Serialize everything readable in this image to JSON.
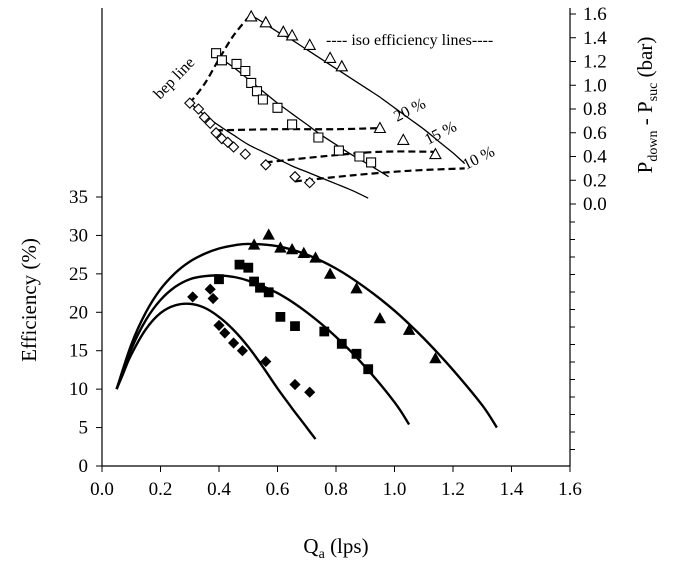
{
  "chart_data": {
    "type": "scatter",
    "xlabel": "Q",
    "xlabel_sub": "a",
    "xlabel_units": " (lps)",
    "ylabel": "Efficiency (%)",
    "y2label_prefix": "P",
    "y2label_sub1": "down",
    "y2label_mid": " - P",
    "y2label_sub2": "suc",
    "y2label_suffix": " (bar)",
    "xlim": [
      0,
      1.6
    ],
    "ylim": [
      0,
      35
    ],
    "y2lim": [
      0,
      1.6
    ],
    "x_ticks": [
      "0.0",
      "0.2",
      "0.4",
      "0.6",
      "0.8",
      "1.0",
      "1.2",
      "1.4",
      "1.6"
    ],
    "y_ticks": [
      "0",
      "5",
      "10",
      "15",
      "20",
      "25",
      "30",
      "35"
    ],
    "y2_ticks": [
      "0.0",
      "0.2",
      "0.4",
      "0.6",
      "0.8",
      "1.0",
      "1.2",
      "1.4",
      "1.6"
    ],
    "annotations": {
      "legend_note": "---- iso efficiency lines----",
      "bep_line": "bep line",
      "iso_20": "20 %",
      "iso_15": "15 %",
      "iso_10": "10 %"
    },
    "series": [
      {
        "marker": "filled-diamond",
        "axis": "efficiency",
        "x": [
          0.31,
          0.37,
          0.38,
          0.4,
          0.42,
          0.45,
          0.48,
          0.56,
          0.66,
          0.71
        ],
        "y": [
          22.0,
          23.0,
          21.8,
          18.3,
          17.3,
          16.0,
          15.0,
          13.6,
          10.6,
          9.6
        ]
      },
      {
        "marker": "filled-square",
        "axis": "efficiency",
        "x": [
          0.4,
          0.47,
          0.5,
          0.52,
          0.54,
          0.57,
          0.61,
          0.66,
          0.76,
          0.82,
          0.87,
          0.91
        ],
        "y": [
          24.3,
          26.2,
          25.8,
          24.0,
          23.2,
          22.6,
          19.4,
          18.2,
          17.5,
          15.9,
          14.6,
          12.6
        ]
      },
      {
        "marker": "filled-triangle",
        "axis": "efficiency",
        "x": [
          0.52,
          0.57,
          0.61,
          0.65,
          0.69,
          0.73,
          0.78,
          0.87,
          0.95,
          1.05,
          1.14
        ],
        "y": [
          28.8,
          30.1,
          28.4,
          28.2,
          27.7,
          27.1,
          25.0,
          23.1,
          19.2,
          17.7,
          14.0
        ]
      },
      {
        "marker": "open-diamond",
        "axis": "pressure",
        "x": [
          0.3,
          0.33,
          0.35,
          0.37,
          0.39,
          0.41,
          0.43,
          0.45,
          0.49,
          0.56,
          0.66,
          0.71
        ],
        "y": [
          0.85,
          0.8,
          0.73,
          0.68,
          0.6,
          0.55,
          0.52,
          0.48,
          0.42,
          0.33,
          0.23,
          0.18
        ]
      },
      {
        "marker": "open-square",
        "axis": "pressure",
        "x": [
          0.39,
          0.41,
          0.46,
          0.49,
          0.51,
          0.53,
          0.55,
          0.6,
          0.65,
          0.74,
          0.81,
          0.88,
          0.92
        ],
        "y": [
          1.27,
          1.21,
          1.18,
          1.12,
          1.02,
          0.95,
          0.88,
          0.81,
          0.67,
          0.56,
          0.45,
          0.4,
          0.35
        ]
      },
      {
        "marker": "open-triangle",
        "axis": "pressure",
        "x": [
          0.51,
          0.56,
          0.62,
          0.65,
          0.71,
          0.78,
          0.82,
          0.95,
          1.03,
          1.14
        ],
        "y": [
          1.58,
          1.53,
          1.45,
          1.42,
          1.34,
          1.23,
          1.16,
          0.64,
          0.54,
          0.42
        ]
      }
    ],
    "fit_curves": [
      {
        "axis": "efficiency",
        "x": [
          0.05,
          0.07,
          0.1,
          0.15,
          0.2,
          0.25,
          0.3,
          0.35,
          0.4,
          0.45,
          0.5,
          0.55,
          0.6,
          0.65,
          0.7,
          0.73
        ],
        "y": [
          10.0,
          11.8,
          14.5,
          17.8,
          19.9,
          20.9,
          21.1,
          20.6,
          19.4,
          17.7,
          15.5,
          12.9,
          10.1,
          7.5,
          5.0,
          3.5
        ]
      },
      {
        "axis": "efficiency",
        "x": [
          0.05,
          0.1,
          0.15,
          0.2,
          0.25,
          0.3,
          0.35,
          0.4,
          0.45,
          0.5,
          0.6,
          0.7,
          0.8,
          0.9,
          1.0,
          1.05
        ],
        "y": [
          10.0,
          15.2,
          19.0,
          21.6,
          23.3,
          24.3,
          24.7,
          24.8,
          24.6,
          24.1,
          22.5,
          20.0,
          16.8,
          12.9,
          8.3,
          5.4
        ]
      },
      {
        "axis": "efficiency",
        "x": [
          0.05,
          0.1,
          0.15,
          0.2,
          0.25,
          0.3,
          0.35,
          0.4,
          0.45,
          0.5,
          0.6,
          0.7,
          0.8,
          0.9,
          1.0,
          1.1,
          1.2,
          1.3,
          1.35
        ],
        "y": [
          10.0,
          15.8,
          20.0,
          23.0,
          25.1,
          26.6,
          27.6,
          28.3,
          28.7,
          28.9,
          28.6,
          27.5,
          25.7,
          23.2,
          20.2,
          16.6,
          12.5,
          7.9,
          5.0
        ]
      },
      {
        "axis": "pressure",
        "x": [
          0.3,
          0.35,
          0.4,
          0.45,
          0.5,
          0.55,
          0.6,
          0.65,
          0.7,
          0.75,
          0.8,
          0.85,
          0.91
        ],
        "y": [
          0.85,
          0.75,
          0.66,
          0.58,
          0.5,
          0.44,
          0.38,
          0.32,
          0.27,
          0.22,
          0.17,
          0.12,
          0.05
        ]
      },
      {
        "axis": "pressure",
        "x": [
          0.38,
          0.45,
          0.5,
          0.55,
          0.6,
          0.65,
          0.7,
          0.75,
          0.8,
          0.85,
          0.92,
          0.98
        ],
        "y": [
          1.27,
          1.15,
          1.05,
          0.95,
          0.85,
          0.76,
          0.67,
          0.58,
          0.5,
          0.42,
          0.32,
          0.23
        ]
      },
      {
        "axis": "pressure",
        "x": [
          0.51,
          0.55,
          0.6,
          0.65,
          0.7,
          0.75,
          0.8,
          0.85,
          0.9,
          0.95,
          1.0,
          1.05,
          1.1,
          1.15,
          1.2,
          1.24
        ],
        "y": [
          1.59,
          1.53,
          1.45,
          1.38,
          1.3,
          1.22,
          1.14,
          1.06,
          0.98,
          0.9,
          0.81,
          0.72,
          0.63,
          0.53,
          0.43,
          0.34
        ]
      }
    ],
    "bep_line": {
      "axis": "pressure",
      "x": [
        0.3,
        0.35,
        0.4,
        0.45,
        0.51
      ],
      "y": [
        0.85,
        1.01,
        1.22,
        1.42,
        1.6
      ]
    },
    "iso_lines": [
      {
        "label": "20 %",
        "axis": "pressure",
        "x": [
          0.39,
          0.6,
          0.8,
          0.96
        ],
        "y": [
          0.62,
          0.63,
          0.63,
          0.64
        ]
      },
      {
        "label": "15 %",
        "axis": "pressure",
        "x": [
          0.56,
          0.75,
          0.95,
          1.14
        ],
        "y": [
          0.35,
          0.4,
          0.44,
          0.44
        ]
      },
      {
        "label": "10 %",
        "axis": "pressure",
        "x": [
          0.66,
          0.85,
          1.05,
          1.24
        ],
        "y": [
          0.19,
          0.24,
          0.28,
          0.3
        ]
      }
    ]
  }
}
